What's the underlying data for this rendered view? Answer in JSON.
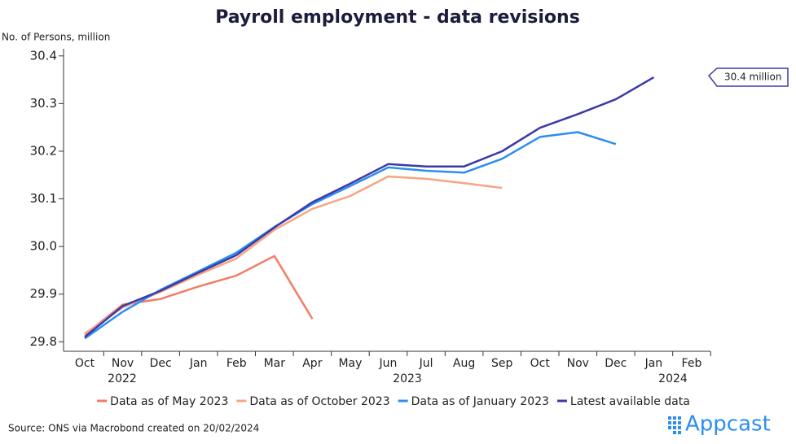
{
  "chart_data": {
    "type": "line",
    "title": "Payroll employment - data revisions",
    "y_label": "No. of Persons, million",
    "categories": [
      "Oct",
      "Nov",
      "Dec",
      "Jan",
      "Feb",
      "Mar",
      "Apr",
      "May",
      "Jun",
      "Jul",
      "Aug",
      "Sep",
      "Oct",
      "Nov",
      "Dec",
      "Jan",
      "Feb"
    ],
    "year_labels": [
      "2022",
      "2023",
      "2024"
    ],
    "ylim": [
      29.78,
      30.415
    ],
    "yticks": [
      29.8,
      29.9,
      {
        "value": 30.0,
        "label": "30.0"
      },
      30.1,
      30.2,
      30.3,
      30.4
    ],
    "series": [
      {
        "name": "Data as of May 2023",
        "color": "#f27c66",
        "values": [
          29.815,
          29.878,
          29.89,
          29.916,
          29.939,
          29.98,
          29.848,
          null,
          null,
          null,
          null,
          null,
          null,
          null,
          null,
          null,
          null
        ]
      },
      {
        "name": "Data as of October 2023",
        "color": "#f7a483",
        "values": [
          29.817,
          29.872,
          29.905,
          29.941,
          29.975,
          30.035,
          30.079,
          30.106,
          30.147,
          30.142,
          30.133,
          30.123,
          null,
          null,
          null,
          null,
          null
        ]
      },
      {
        "name": "Data as of January 2023",
        "color": "#2b8ef0",
        "values": [
          29.807,
          29.863,
          29.909,
          29.948,
          29.987,
          30.041,
          30.089,
          30.127,
          30.166,
          30.159,
          30.155,
          30.184,
          30.23,
          30.24,
          30.215,
          null,
          null
        ]
      },
      {
        "name": "Latest available data",
        "color": "#3b3aa6",
        "values": [
          29.81,
          29.875,
          29.907,
          29.945,
          29.982,
          30.04,
          30.093,
          30.132,
          30.173,
          30.168,
          30.168,
          30.2,
          30.249,
          30.278,
          30.309,
          30.355,
          null
        ]
      }
    ],
    "annotation": "30.4 million",
    "source": "Source: ONS via Macrobond created on 20/02/2024",
    "logo": "Appcast"
  }
}
